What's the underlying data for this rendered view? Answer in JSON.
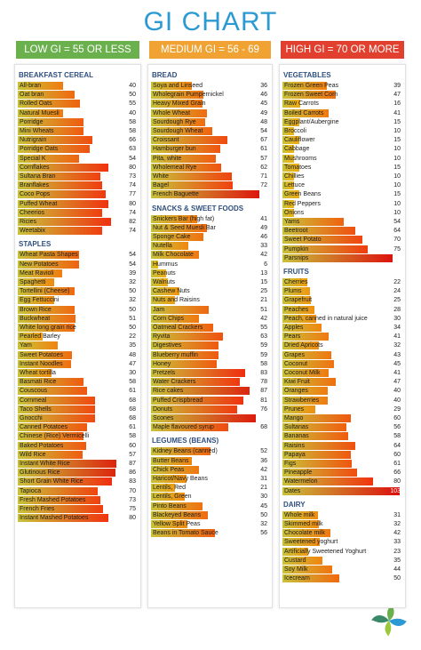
{
  "title": "GI CHART",
  "legend": [
    {
      "label": "LOW GI = 55 OR LESS",
      "color": "#6ab04c"
    },
    {
      "label": "MEDIUM GI = 56 - 69",
      "color": "#f0a232"
    },
    {
      "label": "HIGH GI = 70 OR MORE",
      "color": "#e2402e"
    }
  ],
  "columns": [
    {
      "sections": [
        {
          "heading": "BREAKFAST CEREAL",
          "items": [
            {
              "name": "All-bran",
              "gi": 40
            },
            {
              "name": "Oat bran",
              "gi": 50
            },
            {
              "name": "Rolled Oats",
              "gi": 55
            },
            {
              "name": "Natural Muesli",
              "gi": 40
            },
            {
              "name": "Porridge",
              "gi": 58
            },
            {
              "name": "Mini Wheats",
              "gi": 58
            },
            {
              "name": "Nutrigrain",
              "gi": 66
            },
            {
              "name": "Porridge Oats",
              "gi": 63
            },
            {
              "name": "Special K",
              "gi": 54
            },
            {
              "name": "Cornflakes",
              "gi": 80
            },
            {
              "name": "Sultana Bran",
              "gi": 73
            },
            {
              "name": "Branflakes",
              "gi": 74
            },
            {
              "name": "Coco Pops",
              "gi": 77
            },
            {
              "name": "Puffed Wheat",
              "gi": 80
            },
            {
              "name": "Cheerios",
              "gi": 74
            },
            {
              "name": "Ricies",
              "gi": 82
            },
            {
              "name": "Weetabix",
              "gi": 74
            }
          ]
        },
        {
          "heading": "STAPLES",
          "items": [
            {
              "name": "Wheat Pasta Shapes",
              "gi": 54
            },
            {
              "name": "New Potatoes",
              "gi": 54
            },
            {
              "name": "Meat Ravioli",
              "gi": 39
            },
            {
              "name": "Spaghetti",
              "gi": 32
            },
            {
              "name": "Tortellini (Cheese)",
              "gi": 50
            },
            {
              "name": "Egg Fettuccini",
              "gi": 32
            },
            {
              "name": "Brown Rice",
              "gi": 50
            },
            {
              "name": "Buckwheat",
              "gi": 51
            },
            {
              "name": "White long grain rice",
              "gi": 50
            },
            {
              "name": "Pearled Barley",
              "gi": 22
            },
            {
              "name": "Yam",
              "gi": 35
            },
            {
              "name": "Sweet Potatoes",
              "gi": 48
            },
            {
              "name": "Instant Noodles",
              "gi": 47
            },
            {
              "name": "Wheat tortilla",
              "gi": 30
            },
            {
              "name": "Basmati Rice",
              "gi": 58
            },
            {
              "name": "Couscous",
              "gi": 61
            },
            {
              "name": "Cornmeal",
              "gi": 68
            },
            {
              "name": "Taco Shells",
              "gi": 68
            },
            {
              "name": "Gnocchi",
              "gi": 68
            },
            {
              "name": "Canned Potatoes",
              "gi": 61
            },
            {
              "name": "Chinese (Rice) Vermicelli",
              "gi": 58
            },
            {
              "name": "Baked Potatoes",
              "gi": 60
            },
            {
              "name": "Wild Rice",
              "gi": 57
            },
            {
              "name": "Instant White Rice",
              "gi": 87
            },
            {
              "name": "Glutinous Rice",
              "gi": 86
            },
            {
              "name": "Short Grain White Rice",
              "gi": 83
            },
            {
              "name": "Tapioca",
              "gi": 70
            },
            {
              "name": "Fresh Mashed Potatoes",
              "gi": 73
            },
            {
              "name": "French Fries",
              "gi": 75
            },
            {
              "name": "Instant Mashed Potatoes",
              "gi": 80
            }
          ]
        }
      ]
    },
    {
      "sections": [
        {
          "heading": "BREAD",
          "items": [
            {
              "name": "Soya and Linseed",
              "gi": 36
            },
            {
              "name": "Wholegrain Pumpernickel",
              "gi": 46
            },
            {
              "name": "Heavy Mixed Grain",
              "gi": 45
            },
            {
              "name": "Whole Wheat",
              "gi": 49
            },
            {
              "name": "Sourdough Rye",
              "gi": 48
            },
            {
              "name": "Sourdough Wheat",
              "gi": 54
            },
            {
              "name": "Croissant",
              "gi": 67
            },
            {
              "name": "Hamburger bun",
              "gi": 61
            },
            {
              "name": "Pita, white",
              "gi": 57
            },
            {
              "name": "Wholemeal Rye",
              "gi": 62
            },
            {
              "name": "White",
              "gi": 71
            },
            {
              "name": "Bagel",
              "gi": 72
            },
            {
              "name": "French Baguette",
              "gi": 95
            }
          ]
        },
        {
          "heading": "SNACKS & SWEET FOODS",
          "items": [
            {
              "name": "Snickers Bar (high fat)",
              "gi": 41
            },
            {
              "name": "Nut & Seed Muesli Bar",
              "gi": 49
            },
            {
              "name": "Sponge Cake",
              "gi": 46
            },
            {
              "name": "Nutella",
              "gi": 33
            },
            {
              "name": "Milk Chocolate",
              "gi": 42
            },
            {
              "name": "Hummus",
              "gi": 6
            },
            {
              "name": "Peanuts",
              "gi": 13
            },
            {
              "name": "Walnuts",
              "gi": 15
            },
            {
              "name": "Cashew Nuts",
              "gi": 25
            },
            {
              "name": "Nuts and Raisins",
              "gi": 21
            },
            {
              "name": "Jam",
              "gi": 51
            },
            {
              "name": "Corn Chips",
              "gi": 42
            },
            {
              "name": "Oatmeal Crackers",
              "gi": 55
            },
            {
              "name": "Ryvita",
              "gi": 63
            },
            {
              "name": "Digestives",
              "gi": 59
            },
            {
              "name": "Blueberry muffin",
              "gi": 59
            },
            {
              "name": "Honey",
              "gi": 58
            },
            {
              "name": "Pretzels",
              "gi": 83
            },
            {
              "name": "Water Crackers",
              "gi": 78
            },
            {
              "name": "Rice cakes",
              "gi": 87
            },
            {
              "name": "Puffed Crispbread",
              "gi": 81
            },
            {
              "name": "Donuts",
              "gi": 76
            },
            {
              "name": "Scones",
              "gi": 92
            },
            {
              "name": "Maple flavoured syrup",
              "gi": 68
            }
          ]
        },
        {
          "heading": "LEGUMES (BEANS)",
          "items": [
            {
              "name": "Kidney Beans (canned)",
              "gi": 52
            },
            {
              "name": "Butter Beans",
              "gi": 36
            },
            {
              "name": "Chick Peas",
              "gi": 42
            },
            {
              "name": "Haricot/Navy Beans",
              "gi": 31
            },
            {
              "name": "Lentils, Red",
              "gi": 21
            },
            {
              "name": "Lentils, Green",
              "gi": 30
            },
            {
              "name": "Pinto Beans",
              "gi": 45
            },
            {
              "name": "Blackeyed Beans",
              "gi": 50
            },
            {
              "name": "Yellow Split Peas",
              "gi": 32
            },
            {
              "name": "Beans in Tomato Sauce",
              "gi": 56
            }
          ]
        }
      ]
    },
    {
      "sections": [
        {
          "heading": "VEGETABLES",
          "items": [
            {
              "name": "Frozen Green Peas",
              "gi": 39
            },
            {
              "name": "Frozen Sweet Corn",
              "gi": 47
            },
            {
              "name": "Raw Carrots",
              "gi": 16
            },
            {
              "name": "Boiled Carrots",
              "gi": 41
            },
            {
              "name": "Eggplant/Aubergine",
              "gi": 15
            },
            {
              "name": "Broccoli",
              "gi": 10
            },
            {
              "name": "Cauliflower",
              "gi": 15
            },
            {
              "name": "Cabbage",
              "gi": 10
            },
            {
              "name": "Mushrooms",
              "gi": 10
            },
            {
              "name": "Tomatoes",
              "gi": 15
            },
            {
              "name": "Chillies",
              "gi": 10
            },
            {
              "name": "Lettuce",
              "gi": 10
            },
            {
              "name": "Green Beans",
              "gi": 15
            },
            {
              "name": "Red Peppers",
              "gi": 10
            },
            {
              "name": "Onions",
              "gi": 10
            },
            {
              "name": "Yams",
              "gi": 54
            },
            {
              "name": "Beetroot",
              "gi": 64
            },
            {
              "name": "Sweet Potato",
              "gi": 70
            },
            {
              "name": "Pumpkin",
              "gi": 75
            },
            {
              "name": "Parsnips",
              "gi": 97
            }
          ]
        },
        {
          "heading": "FRUITS",
          "items": [
            {
              "name": "Cherries",
              "gi": 22
            },
            {
              "name": "Plums",
              "gi": 24
            },
            {
              "name": "Grapefruit",
              "gi": 25
            },
            {
              "name": "Peaches",
              "gi": 28
            },
            {
              "name": "Peach, canned in natural juice",
              "gi": 30
            },
            {
              "name": "Apples",
              "gi": 34
            },
            {
              "name": "Pears",
              "gi": 41
            },
            {
              "name": "Dried Apricots",
              "gi": 32
            },
            {
              "name": "Grapes",
              "gi": 43
            },
            {
              "name": "Coconut",
              "gi": 45
            },
            {
              "name": "Coconut Milk",
              "gi": 41
            },
            {
              "name": "Kiwi Fruit",
              "gi": 47
            },
            {
              "name": "Oranges",
              "gi": 40
            },
            {
              "name": "Strawberries",
              "gi": 40
            },
            {
              "name": "Prunes",
              "gi": 29
            },
            {
              "name": "Mango",
              "gi": 60
            },
            {
              "name": "Sultanas",
              "gi": 56
            },
            {
              "name": "Bananas",
              "gi": 58
            },
            {
              "name": "Raisins",
              "gi": 64
            },
            {
              "name": "Papaya",
              "gi": 60
            },
            {
              "name": "Figs",
              "gi": 61
            },
            {
              "name": "Pineapple",
              "gi": 66
            },
            {
              "name": "Watermelon",
              "gi": 80
            },
            {
              "name": "Dates",
              "gi": 103
            }
          ]
        },
        {
          "heading": "DAIRY",
          "items": [
            {
              "name": "Whole milk",
              "gi": 31
            },
            {
              "name": "Skimmed milk",
              "gi": 32
            },
            {
              "name": "Chocolate milk",
              "gi": 42
            },
            {
              "name": "Sweetened yoghurt",
              "gi": 33
            },
            {
              "name": "Artificially Sweetened Yoghurt",
              "gi": 23
            },
            {
              "name": "Custard",
              "gi": 35
            },
            {
              "name": "Soy Milk",
              "gi": 44
            },
            {
              "name": "Icecream",
              "gi": 50
            }
          ]
        }
      ]
    }
  ]
}
